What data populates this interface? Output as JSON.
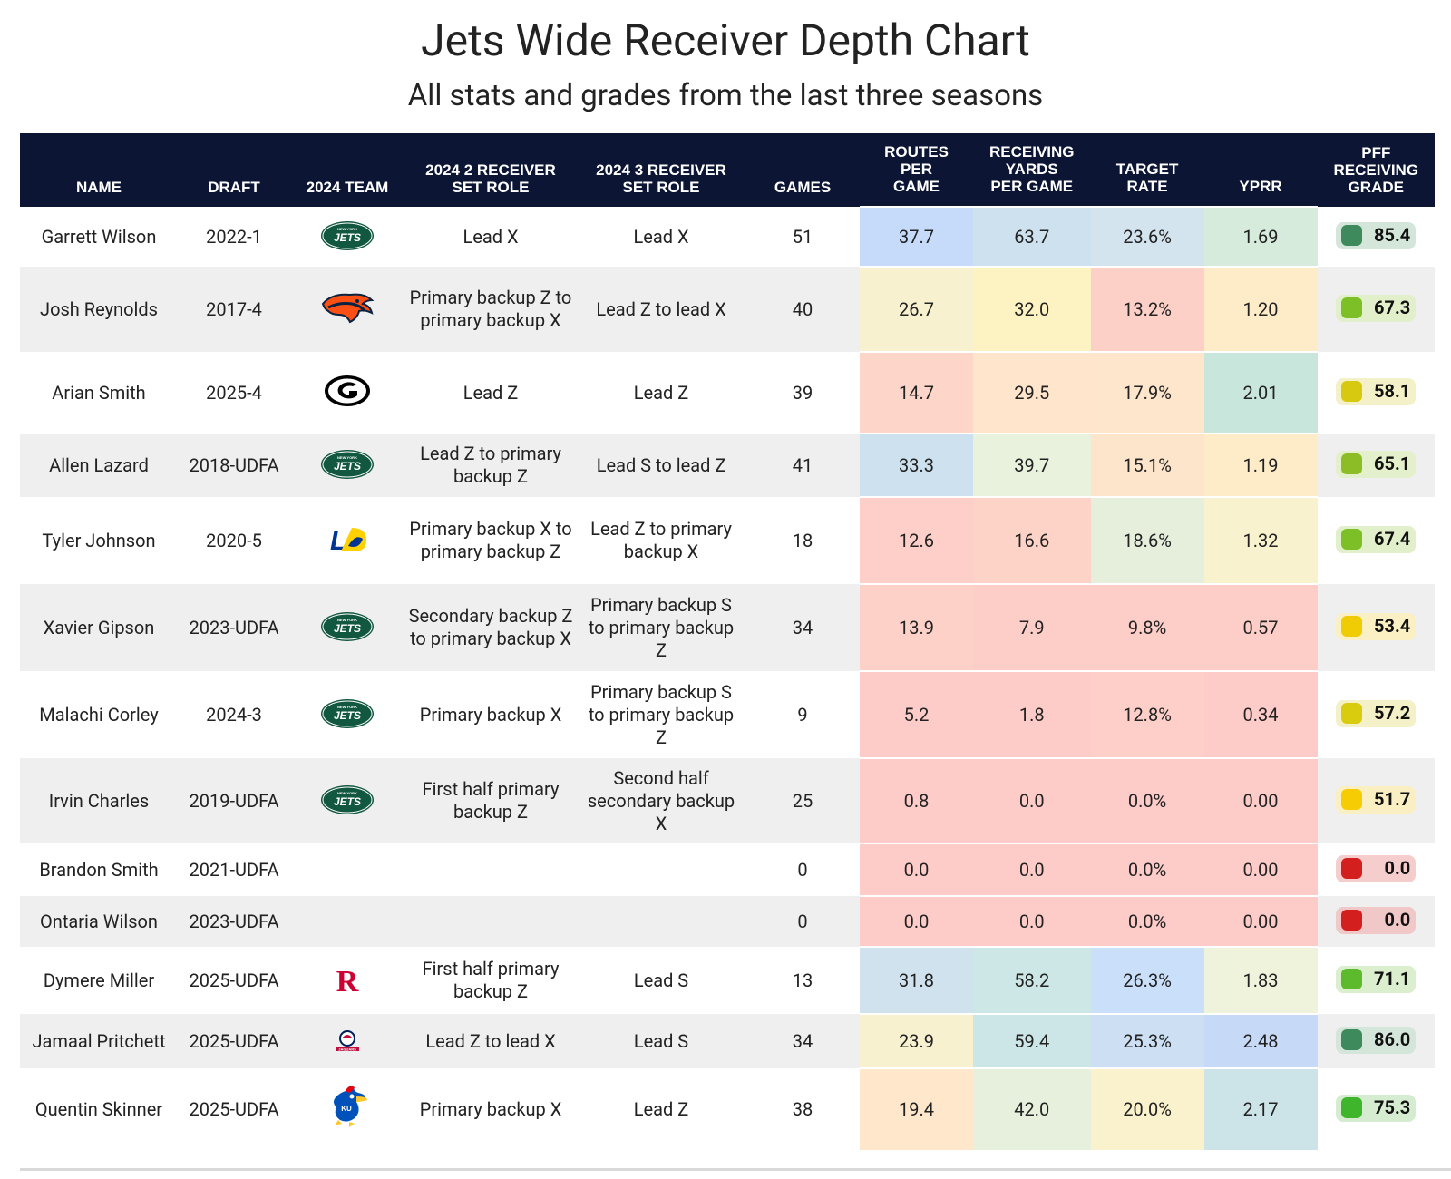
{
  "title": "Jets Wide Receiver Depth Chart",
  "subtitle": "All stats and grades from the last three seasons",
  "chart_data": {
    "type": "table",
    "columns": [
      "NAME",
      "DRAFT",
      "2024 TEAM",
      "2024 2 RECEIVER SET ROLE",
      "2024 3 RECEIVER SET ROLE",
      "GAMES",
      "ROUTES PER GAME",
      "RECEIVING YARDS PER GAME",
      "TARGET RATE",
      "YPRR",
      "PFF RECEIVING GRADE"
    ],
    "rows": [
      {
        "name": "Garrett Wilson",
        "draft": "2022-1",
        "team_icon": "jets-logo",
        "role2": "Lead X",
        "role3": "Lead X",
        "games": "51",
        "routes": "37.7",
        "yards": "63.7",
        "target": "23.6%",
        "yprr": "1.69",
        "grade": "85.4",
        "routes_color": "#c6dafa",
        "yards_color": "#cde2ee",
        "target_color": "#d4e4ef",
        "yprr_color": "#d6ebdc",
        "grade_dot": "#3f8a5c",
        "grade_bg": "#d4e6da"
      },
      {
        "name": "Josh Reynolds",
        "draft": "2017-4",
        "team_icon": "broncos-logo",
        "role2": "Primary backup Z to primary backup X",
        "role3": "Lead Z to lead X",
        "games": "40",
        "routes": "26.7",
        "yards": "32.0",
        "target": "13.2%",
        "yprr": "1.20",
        "grade": "67.3",
        "routes_color": "#f7f1cf",
        "yards_color": "#fdf3c2",
        "target_color": "#fdd0c7",
        "yprr_color": "#feecc9",
        "grade_dot": "#7cbf26",
        "grade_bg": "#e1efcb"
      },
      {
        "name": "Arian Smith",
        "draft": "2025-4",
        "team_icon": "georgia-logo",
        "role2": "Lead Z",
        "role3": "Lead Z",
        "games": "39",
        "routes": "14.7",
        "yards": "29.5",
        "target": "17.9%",
        "yprr": "2.01",
        "grade": "58.1",
        "routes_color": "#fdd6c9",
        "yards_color": "#fee5cb",
        "target_color": "#fde6cc",
        "yprr_color": "#c9e6dc",
        "grade_dot": "#d6c90f",
        "grade_bg": "#f4f0c8"
      },
      {
        "name": "Allen Lazard",
        "draft": "2018-UDFA",
        "team_icon": "jets-logo",
        "role2": "Lead Z to primary backup Z",
        "role3": "Lead S to lead Z",
        "games": "41",
        "routes": "33.3",
        "yards": "39.7",
        "target": "15.1%",
        "yprr": "1.19",
        "grade": "65.1",
        "routes_color": "#cde1ef",
        "yards_color": "#e9f2dd",
        "target_color": "#fde5cb",
        "yprr_color": "#feecc9",
        "grade_dot": "#8dbd26",
        "grade_bg": "#e4efcb"
      },
      {
        "name": "Tyler Johnson",
        "draft": "2020-5",
        "team_icon": "rams-logo",
        "role2": "Primary backup X to primary backup Z",
        "role3": "Lead Z to primary backup X",
        "games": "18",
        "routes": "12.6",
        "yards": "16.6",
        "target": "18.6%",
        "yprr": "1.32",
        "grade": "67.4",
        "routes_color": "#fdcfc8",
        "yards_color": "#fdd3c8",
        "target_color": "#e5efdc",
        "yprr_color": "#f8f2cf",
        "grade_dot": "#7cbf26",
        "grade_bg": "#e1efcb"
      },
      {
        "name": "Xavier Gipson",
        "draft": "2023-UDFA",
        "team_icon": "jets-logo",
        "role2": "Secondary backup Z to primary backup X",
        "role3": "Primary backup S to primary backup Z",
        "games": "34",
        "routes": "13.9",
        "yards": "7.9",
        "target": "9.8%",
        "yprr": "0.57",
        "grade": "53.4",
        "routes_color": "#fdd0c8",
        "yards_color": "#fdcdc8",
        "target_color": "#fdcdc8",
        "yprr_color": "#fdcdc8",
        "grade_dot": "#f0cc05",
        "grade_bg": "#faf0c3"
      },
      {
        "name": "Malachi Corley",
        "draft": "2024-3",
        "team_icon": "jets-logo",
        "role2": "Primary backup X",
        "role3": "Primary backup S to primary backup Z",
        "games": "9",
        "routes": "5.2",
        "yards": "1.8",
        "target": "12.8%",
        "yprr": "0.34",
        "grade": "57.2",
        "routes_color": "#fdcbc8",
        "yards_color": "#fdcbc8",
        "target_color": "#fdcfc8",
        "yprr_color": "#fdcbc8",
        "grade_dot": "#d9cc0f",
        "grade_bg": "#f4f0c8"
      },
      {
        "name": "Irvin Charles",
        "draft": "2019-UDFA",
        "team_icon": "jets-logo",
        "role2": "First half primary backup Z",
        "role3": "Second half secondary backup X",
        "games": "25",
        "routes": "0.8",
        "yards": "0.0",
        "target": "0.0%",
        "yprr": "0.00",
        "grade": "51.7",
        "routes_color": "#fdcbc8",
        "yards_color": "#fdcbc8",
        "target_color": "#fdcbc8",
        "yprr_color": "#fdcbc8",
        "grade_dot": "#f6cd05",
        "grade_bg": "#faefc3"
      },
      {
        "name": "Brandon Smith",
        "draft": "2021-UDFA",
        "team_icon": "",
        "role2": "",
        "role3": "",
        "games": "0",
        "routes": "0.0",
        "yards": "0.0",
        "target": "0.0%",
        "yprr": "0.00",
        "grade": "0.0",
        "routes_color": "#fdcbc8",
        "yards_color": "#fdcbc8",
        "target_color": "#fdcbc8",
        "yprr_color": "#fdcbc8",
        "grade_dot": "#d41f1f",
        "grade_bg": "#f6cdcd"
      },
      {
        "name": "Ontaria Wilson",
        "draft": "2023-UDFA",
        "team_icon": "",
        "role2": "",
        "role3": "",
        "games": "0",
        "routes": "0.0",
        "yards": "0.0",
        "target": "0.0%",
        "yprr": "0.00",
        "grade": "0.0",
        "routes_color": "#fdcbc8",
        "yards_color": "#fdcbc8",
        "target_color": "#fdcbc8",
        "yprr_color": "#fdcbc8",
        "grade_dot": "#d41f1f",
        "grade_bg": "#f0c8c8"
      },
      {
        "name": "Dymere Miller",
        "draft": "2025-UDFA",
        "team_icon": "rutgers-logo",
        "role2": "First half primary backup Z",
        "role3": "Lead S",
        "games": "13",
        "routes": "31.8",
        "yards": "58.2",
        "target": "26.3%",
        "yprr": "1.83",
        "grade": "71.1",
        "routes_color": "#d0e2ee",
        "yards_color": "#cde6e6",
        "target_color": "#cadffa",
        "yprr_color": "#eff3dc",
        "grade_dot": "#5cba2c",
        "grade_bg": "#dbeecd"
      },
      {
        "name": "Jamaal Pritchett",
        "draft": "2025-UDFA",
        "team_icon": "south-alabama-logo",
        "role2": "Lead Z to lead X",
        "role3": "Lead S",
        "games": "34",
        "routes": "23.9",
        "yards": "59.4",
        "target": "25.3%",
        "yprr": "2.48",
        "grade": "86.0",
        "routes_color": "#f7f1cf",
        "yards_color": "#cce5e6",
        "target_color": "#cde0f3",
        "yprr_color": "#c6daf7",
        "grade_dot": "#3f8a5c",
        "grade_bg": "#d4e6da"
      },
      {
        "name": "Quentin Skinner",
        "draft": "2025-UDFA",
        "team_icon": "kansas-logo",
        "role2": "Primary backup X",
        "role3": "Lead Z",
        "games": "38",
        "routes": "19.4",
        "yards": "42.0",
        "target": "20.0%",
        "yprr": "2.17",
        "grade": "75.3",
        "routes_color": "#fee7cb",
        "yards_color": "#e6f0dd",
        "target_color": "#faf2cc",
        "yprr_color": "#cce3e8",
        "grade_dot": "#3fb52c",
        "grade_bg": "#d6ecd0"
      }
    ]
  }
}
